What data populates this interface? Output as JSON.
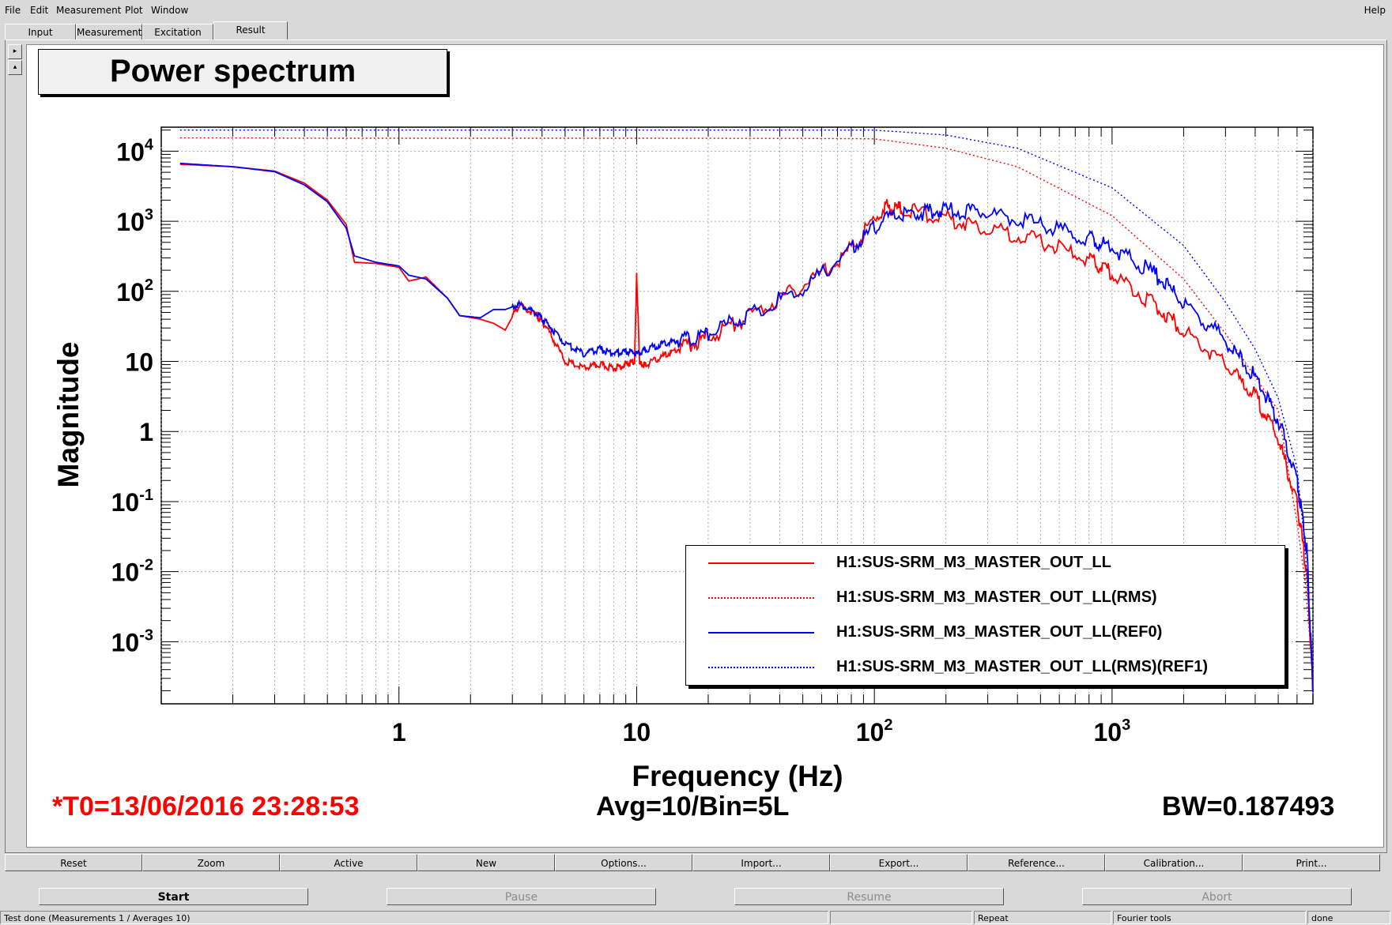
{
  "menu": [
    "File",
    "Edit",
    "Measurement",
    "Plot",
    "Window"
  ],
  "help": "Help",
  "tabs": [
    "Input",
    "Measurement",
    "Excitation",
    "Result"
  ],
  "plot_title": "Power spectrum",
  "status_line": {
    "t0": "*T0=13/06/2016 23:28:53",
    "avg": "Avg=10/Bin=5L",
    "bw": "BW=0.187493"
  },
  "toolbar": [
    "Reset",
    "Zoom",
    "Active",
    "New",
    "Options...",
    "Import...",
    "Export...",
    "Reference...",
    "Calibration...",
    "Print..."
  ],
  "run_buttons": [
    "Start",
    "Pause",
    "Resume",
    "Abort"
  ],
  "statusbar": {
    "message": "Test done (Measurements 1 / Averages 10)",
    "cell2": "",
    "repeat": "Repeat",
    "fourier": "Fourier tools",
    "done": "done"
  },
  "colors": {
    "red": "#ff0000",
    "blue": "#0000ff"
  },
  "chart_data": {
    "type": "line",
    "xlabel": "Frequency (Hz)",
    "ylabel": "Magnitude",
    "xscale": "log",
    "yscale": "log",
    "xlim": [
      0.1,
      7000
    ],
    "ylim": [
      0.00013,
      22000
    ],
    "x_ticks": [
      {
        "value": 1,
        "label": "1",
        "base": "1",
        "exp": ""
      },
      {
        "value": 10,
        "label": "10",
        "base": "10",
        "exp": ""
      },
      {
        "value": 100,
        "label": "10^2",
        "base": "10",
        "exp": "2"
      },
      {
        "value": 1000,
        "label": "10^3",
        "base": "10",
        "exp": "3"
      }
    ],
    "y_ticks": [
      {
        "value": 10000,
        "base": "10",
        "exp": "4"
      },
      {
        "value": 1000,
        "base": "10",
        "exp": "3"
      },
      {
        "value": 100,
        "base": "10",
        "exp": "2"
      },
      {
        "value": 10,
        "base": "10",
        "exp": ""
      },
      {
        "value": 1,
        "base": "1",
        "exp": ""
      },
      {
        "value": 0.1,
        "base": "10",
        "exp": "-1"
      },
      {
        "value": 0.01,
        "base": "10",
        "exp": "-2"
      },
      {
        "value": 0.001,
        "base": "10",
        "exp": "-3"
      }
    ],
    "grid": true,
    "legend_position": "bottom-right",
    "series": [
      {
        "name": "H1:SUS-SRM_M3_MASTER_OUT_LL",
        "color": "#ff0000",
        "style": "solid",
        "x": [
          0.12,
          0.2,
          0.3,
          0.4,
          0.5,
          0.6,
          0.65,
          0.8,
          1.0,
          1.1,
          1.3,
          1.6,
          1.8,
          2.2,
          2.5,
          2.8,
          3.2,
          3.8,
          4.2,
          5,
          6,
          7,
          8,
          9,
          9.8,
          10,
          10.3,
          11,
          13,
          15,
          20,
          30,
          50,
          80,
          110,
          130,
          200,
          300,
          500,
          800,
          1000,
          1500,
          2000,
          3000,
          4000,
          5000,
          6000,
          6600,
          7000
        ],
        "y": [
          6500,
          6000,
          5200,
          3500,
          2000,
          900,
          260,
          250,
          220,
          140,
          160,
          80,
          45,
          40,
          35,
          28,
          65,
          45,
          30,
          10,
          8,
          9,
          8,
          9,
          10,
          170,
          9,
          9,
          12,
          15,
          22,
          45,
          120,
          400,
          1600,
          1500,
          1100,
          800,
          520,
          280,
          180,
          65,
          28,
          9,
          3.2,
          0.8,
          0.09,
          0.01,
          0.0002
        ]
      },
      {
        "name": "H1:SUS-SRM_M3_MASTER_OUT_LL(RMS)",
        "color": "#ff0000",
        "style": "dotted",
        "x": [
          0.12,
          0.5,
          1,
          10,
          50,
          100,
          200,
          400,
          1000,
          2000,
          3000,
          4000,
          5000,
          6000,
          6500,
          7000
        ],
        "y": [
          15500,
          15300,
          15300,
          15300,
          15200,
          15000,
          11000,
          6000,
          1200,
          150,
          25,
          6,
          2,
          0.05,
          0.007,
          0.0003
        ]
      },
      {
        "name": "H1:SUS-SRM_M3_MASTER_OUT_LL(REF0)",
        "color": "#0000ff",
        "style": "solid",
        "x": [
          0.12,
          0.2,
          0.3,
          0.4,
          0.5,
          0.6,
          0.65,
          0.8,
          1.0,
          1.1,
          1.3,
          1.6,
          1.8,
          2.2,
          2.5,
          2.8,
          3.2,
          3.8,
          4.2,
          5,
          6,
          7,
          8,
          9,
          10,
          11,
          13,
          15,
          20,
          30,
          50,
          80,
          110,
          150,
          200,
          300,
          500,
          800,
          1000,
          1500,
          2000,
          3000,
          4000,
          5000,
          6000,
          6600,
          7000
        ],
        "y": [
          6700,
          6000,
          5100,
          3300,
          1900,
          800,
          320,
          260,
          230,
          170,
          150,
          80,
          45,
          42,
          55,
          55,
          65,
          48,
          35,
          18,
          13,
          15,
          13,
          14,
          13,
          15,
          18,
          20,
          25,
          48,
          110,
          400,
          1100,
          1300,
          1450,
          1300,
          900,
          560,
          420,
          180,
          70,
          20,
          6,
          1.5,
          0.2,
          0.02,
          0.0002
        ]
      },
      {
        "name": "H1:SUS-SRM_M3_MASTER_OUT_LL(RMS)(REF1)",
        "color": "#0000ff",
        "style": "dotted",
        "x": [
          0.12,
          0.5,
          1,
          10,
          50,
          100,
          200,
          400,
          1000,
          2000,
          3000,
          4000,
          5000,
          6000,
          6500,
          7000
        ],
        "y": [
          20000,
          20000,
          20000,
          20000,
          20000,
          20000,
          17000,
          11000,
          3000,
          450,
          70,
          15,
          3,
          0.3,
          0.02,
          0.0003
        ]
      }
    ]
  }
}
